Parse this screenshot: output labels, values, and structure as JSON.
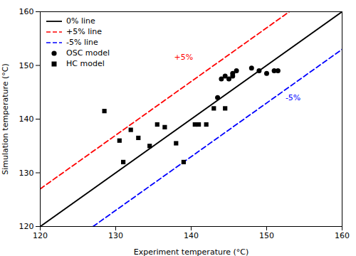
{
  "chart_data": {
    "type": "scatter",
    "xlabel": "Experiment temperature (°C)",
    "ylabel": "Simulation temperature (°C)",
    "xlim": [
      120,
      160
    ],
    "ylim": [
      120,
      160
    ],
    "xticks": [
      120,
      130,
      140,
      150,
      160
    ],
    "yticks": [
      120,
      130,
      140,
      150,
      160
    ],
    "grid": false,
    "legend": "upper left",
    "series": [
      {
        "name": "0% line",
        "type": "line",
        "color": "#000000",
        "line_style": "solid",
        "x": [
          120,
          160
        ],
        "values": [
          120,
          160
        ]
      },
      {
        "name": "+5% line",
        "type": "line",
        "color": "#ff0000",
        "line_style": "dashed",
        "x": [
          120,
          153
        ],
        "values": [
          127,
          160
        ]
      },
      {
        "name": "-5% line",
        "type": "line",
        "color": "#0000ff",
        "line_style": "dashed",
        "x": [
          127,
          160
        ],
        "values": [
          120,
          153
        ]
      },
      {
        "name": "OSC model",
        "type": "scatter",
        "color": "#000000",
        "marker": "circle",
        "x": [
          143.5,
          144.0,
          144.5,
          145.0,
          145.5,
          145.5,
          146.0,
          148.0,
          149.0,
          150.0,
          151.0,
          151.5
        ],
        "values": [
          144.0,
          147.5,
          148.0,
          147.5,
          148.0,
          148.5,
          149.0,
          149.5,
          149.0,
          148.5,
          149.0,
          149.0
        ]
      },
      {
        "name": "HC model",
        "type": "scatter",
        "color": "#000000",
        "marker": "square",
        "x": [
          128.5,
          130.5,
          131.0,
          132.0,
          133.0,
          134.5,
          135.5,
          136.5,
          138.0,
          139.0,
          140.5,
          141.0,
          142.0,
          143.0,
          144.5
        ],
        "values": [
          141.5,
          136.0,
          132.0,
          138.0,
          136.5,
          135.0,
          139.0,
          138.5,
          135.5,
          132.0,
          139.0,
          139.0,
          139.0,
          142.0,
          142.0
        ]
      }
    ],
    "annotations": [
      {
        "text": "+5%",
        "x": 139.0,
        "y": 151.5,
        "color": "#ff0000"
      },
      {
        "text": "-5%",
        "x": 153.5,
        "y": 144.0,
        "color": "#0000ff"
      }
    ]
  }
}
